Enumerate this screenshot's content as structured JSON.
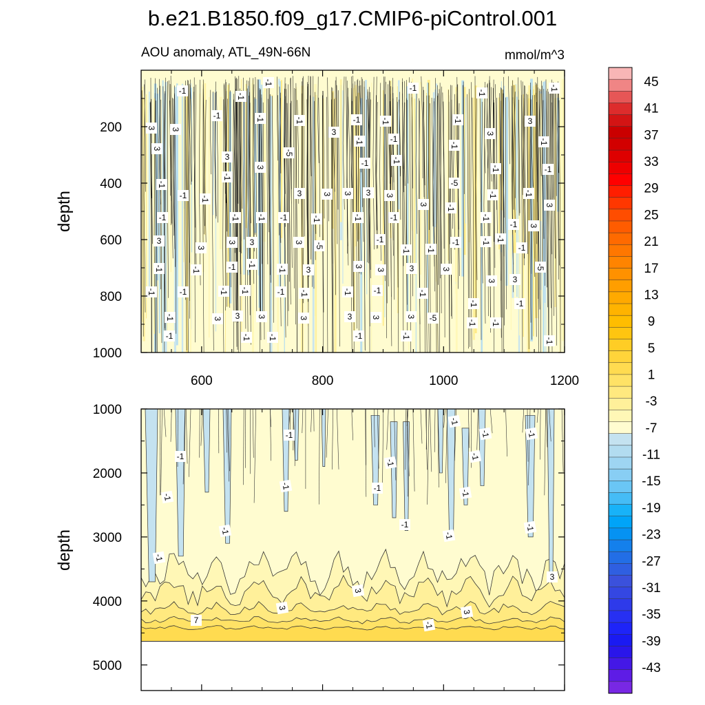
{
  "chart_data": {
    "type": "heatmap",
    "title": "b.e21.B1850.f09_g17.CMIP6-piControl.001",
    "subtitle_left": "AOU anomaly, ATL_49N-66N",
    "units": "mmol/m^3",
    "xlim": [
      500,
      1200
    ],
    "x_ticks": [
      "600",
      "800",
      "1000",
      "1200"
    ],
    "panels": [
      {
        "name": "upper",
        "ylabel": "depth",
        "ylim": [
          0,
          1000
        ],
        "y_ticks": [
          "200",
          "400",
          "600",
          "800",
          "1000"
        ],
        "contour_labels": [
          "-1",
          "-1",
          "-1",
          "-1",
          "-1",
          "-1",
          "-1",
          "-1",
          "-1",
          "-1",
          "-1",
          "-1",
          "3",
          "3",
          "3",
          "3",
          "3",
          "3",
          "3",
          "-5"
        ]
      },
      {
        "name": "lower",
        "ylabel": "depth",
        "ylim": [
          1000,
          5400
        ],
        "y_ticks": [
          "1000",
          "2000",
          "3000",
          "4000",
          "5000"
        ],
        "data_bottom_depth": 4630,
        "contour_labels": [
          "-1",
          "-1",
          "-1",
          "-1",
          "-1",
          "-1",
          "-1",
          "-1",
          "-1",
          "-1",
          "-1",
          "-1",
          "-1",
          "-1",
          "-1",
          "-1",
          "3",
          "3",
          "3",
          "3",
          "7"
        ]
      }
    ],
    "colorbar": {
      "labels": [
        "45",
        "41",
        "37",
        "33",
        "29",
        "25",
        "21",
        "17",
        "13",
        "9",
        "5",
        "1",
        "-3",
        "-7",
        "-11",
        "-15",
        "-19",
        "-23",
        "-27",
        "-31",
        "-35",
        "-39",
        "-43"
      ],
      "colors": [
        "#f8b6b6",
        "#f08585",
        "#e65656",
        "#dd2c2c",
        "#d31414",
        "#ca0000",
        "#d20000",
        "#de0000",
        "#ee0000",
        "#ff0000",
        "#ff1e00",
        "#ff3700",
        "#ff4d00",
        "#ff5c00",
        "#ff6a00",
        "#ff7700",
        "#ff8400",
        "#ff9100",
        "#ff9e00",
        "#ffa900",
        "#ffb300",
        "#ffbd00",
        "#ffc510",
        "#ffcd25",
        "#ffd43a",
        "#ffdb50",
        "#ffe266",
        "#ffe97f",
        "#fff09a",
        "#fff7b6",
        "#fffcd0",
        "#c4e2f0",
        "#b2dcf0",
        "#9ed5f2",
        "#88cef4",
        "#6ac6f5",
        "#45bcf6",
        "#18b2f8",
        "#00a4f8",
        "#0592f2",
        "#1480ec",
        "#226ee6",
        "#2f5fe1",
        "#3b51dc",
        "#3447e2",
        "#2e3aea",
        "#2730f2",
        "#1e24f8",
        "#1a1af2",
        "#2a16ea",
        "#4418e6",
        "#5e1ce6",
        "#7828e4"
      ]
    }
  }
}
